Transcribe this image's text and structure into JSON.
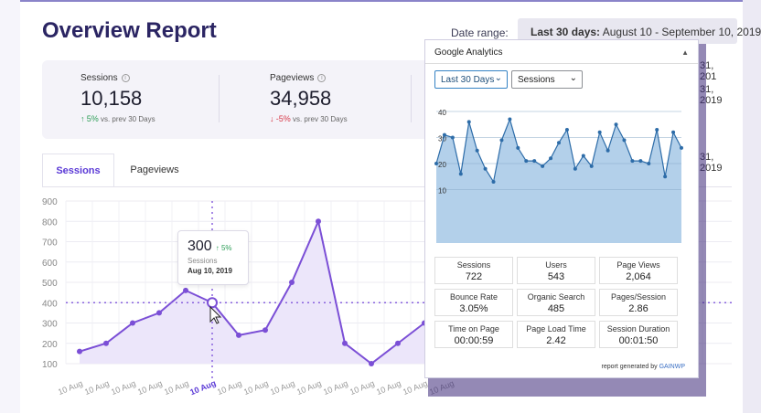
{
  "report": {
    "title": "Overview Report",
    "date_label": "Date range:",
    "date_strong": "Last 30 days:",
    "date_value": " August 10 - September 10, 2019",
    "stats": [
      {
        "label": "Sessions",
        "value": "10,158",
        "change": "5%",
        "direction": "up",
        "compare": "vs. prev 30 Days"
      },
      {
        "label": "Pageviews",
        "value": "34,958",
        "change": "-5%",
        "direction": "down",
        "compare": "vs. prev 30 Days"
      }
    ],
    "tabs": [
      "Sessions",
      "Pageviews"
    ],
    "y_ticks": [
      "900",
      "800",
      "700",
      "600",
      "500",
      "400",
      "300",
      "200",
      "100"
    ],
    "x_label": "10 Aug",
    "right_fragments": [
      "31, 201",
      "31, 2019",
      "31, 2019"
    ],
    "tooltip": {
      "value": "300",
      "change": "5%",
      "label": "Sessions",
      "date": "Aug 10, 2019"
    }
  },
  "report_chart_data": {
    "type": "area",
    "series": [
      {
        "name": "Sessions",
        "values": [
          160,
          200,
          300,
          350,
          460,
          400,
          240,
          265,
          500,
          800,
          200,
          100,
          200,
          300
        ]
      }
    ],
    "highlight_index": 5,
    "ylim": [
      100,
      900
    ],
    "colors": {
      "line": "#7b4fd6",
      "fill": "#ece6fa"
    }
  },
  "widget": {
    "title": "Google Analytics",
    "collapse_arrow": "▲",
    "period_select": "Last 30 Days",
    "metric_select": "Sessions",
    "cards": [
      {
        "label": "Sessions",
        "value": "722"
      },
      {
        "label": "Users",
        "value": "543"
      },
      {
        "label": "Page Views",
        "value": "2,064"
      },
      {
        "label": "Bounce Rate",
        "value": "3.05%"
      },
      {
        "label": "Organic Search",
        "value": "485"
      },
      {
        "label": "Pages/Session",
        "value": "2.86"
      },
      {
        "label": "Time on Page",
        "value": "00:00:59"
      },
      {
        "label": "Page Load Time",
        "value": "2.42"
      },
      {
        "label": "Session Duration",
        "value": "00:01:50"
      }
    ],
    "footer_text": "report generated by",
    "footer_brand": "GAINWP"
  },
  "chart_data": {
    "type": "area",
    "ylim": [
      0,
      40
    ],
    "y_ticks": [
      "40",
      "30",
      "20",
      "10"
    ],
    "series": [
      {
        "name": "Sessions",
        "values": [
          20,
          31,
          30,
          16,
          36,
          25,
          18,
          13,
          29,
          37,
          26,
          21,
          21,
          19,
          22,
          28,
          33,
          18,
          23,
          19,
          32,
          25,
          35,
          29,
          21,
          21,
          20,
          33,
          15,
          32,
          26
        ]
      }
    ],
    "colors": {
      "line": "#2d6ca8",
      "fill": "#b3d0ea",
      "point": "#2d6ca8"
    }
  }
}
